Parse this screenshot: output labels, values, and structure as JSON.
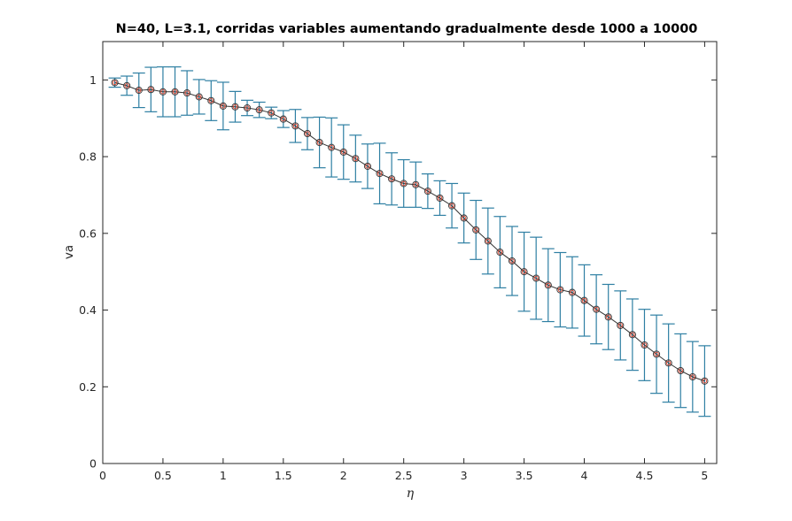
{
  "chart_data": {
    "type": "line",
    "title": "N=40, L=3.1, corridas variables aumentando gradualmente desde 1000 a 10000",
    "xlabel": "η",
    "ylabel": "va",
    "xlim": [
      0,
      5.1
    ],
    "ylim": [
      0,
      1.1
    ],
    "xticks": [
      0,
      0.5,
      1,
      1.5,
      2,
      2.5,
      3,
      3.5,
      4,
      4.5,
      5
    ],
    "xtick_labels": [
      "0",
      "0.5",
      "1",
      "1.5",
      "2",
      "2.5",
      "3",
      "3.5",
      "4",
      "4.5",
      "5"
    ],
    "yticks": [
      0,
      0.2,
      0.4,
      0.6,
      0.8,
      1
    ],
    "ytick_labels": [
      "0",
      "0.2",
      "0.4",
      "0.6",
      "0.8",
      "1"
    ],
    "grid": false,
    "colors": {
      "errorbar": "#2e7fa3",
      "line": "#333333",
      "marker": "#e0402a",
      "axis": "#262626"
    },
    "series": [
      {
        "marker": "circle",
        "x": [
          0.1,
          0.2,
          0.3,
          0.4,
          0.5,
          0.6,
          0.7,
          0.8,
          0.9,
          1.0,
          1.1,
          1.2,
          1.3,
          1.4,
          1.5,
          1.6,
          1.7,
          1.8,
          1.9,
          2.0,
          2.1,
          2.2,
          2.3,
          2.4,
          2.5,
          2.6,
          2.7,
          2.8,
          2.9,
          3.0,
          3.1,
          3.2,
          3.3,
          3.4,
          3.5,
          3.6,
          3.7,
          3.8,
          3.9,
          4.0,
          4.1,
          4.2,
          4.3,
          4.4,
          4.5,
          4.6,
          4.7,
          4.8,
          4.9,
          5.0
        ],
        "y": [
          0.993,
          0.985,
          0.973,
          0.975,
          0.969,
          0.969,
          0.966,
          0.956,
          0.946,
          0.932,
          0.93,
          0.927,
          0.922,
          0.914,
          0.898,
          0.88,
          0.86,
          0.837,
          0.824,
          0.812,
          0.795,
          0.775,
          0.756,
          0.742,
          0.73,
          0.727,
          0.71,
          0.692,
          0.672,
          0.64,
          0.609,
          0.58,
          0.551,
          0.528,
          0.5,
          0.483,
          0.465,
          0.453,
          0.446,
          0.425,
          0.402,
          0.382,
          0.36,
          0.336,
          0.309,
          0.285,
          0.262,
          0.242,
          0.226,
          0.215
        ],
        "err": [
          0.012,
          0.025,
          0.045,
          0.058,
          0.065,
          0.065,
          0.058,
          0.045,
          0.052,
          0.062,
          0.04,
          0.02,
          0.02,
          0.015,
          0.022,
          0.043,
          0.042,
          0.066,
          0.077,
          0.071,
          0.061,
          0.058,
          0.079,
          0.068,
          0.062,
          0.059,
          0.045,
          0.045,
          0.058,
          0.065,
          0.077,
          0.086,
          0.093,
          0.09,
          0.103,
          0.107,
          0.095,
          0.097,
          0.093,
          0.093,
          0.09,
          0.085,
          0.09,
          0.093,
          0.093,
          0.102,
          0.102,
          0.096,
          0.092,
          0.092
        ]
      }
    ]
  }
}
